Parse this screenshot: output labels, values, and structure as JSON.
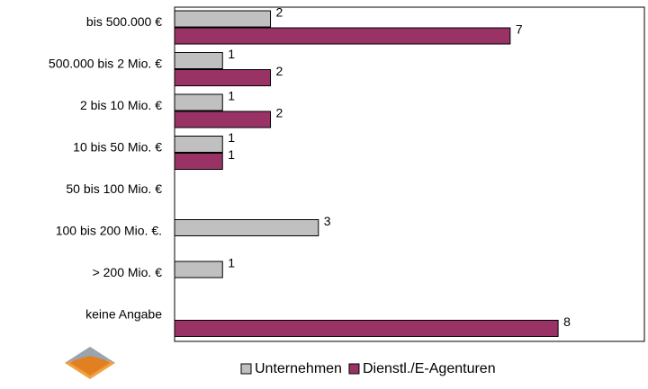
{
  "chart_data": {
    "type": "bar",
    "orientation": "horizontal",
    "categories": [
      "bis 500.000 €",
      "500.000 bis 2 Mio. €",
      "2 bis 10 Mio. €",
      "10 bis 50 Mio. €",
      "50 bis 100 Mio. €",
      "100 bis 200 Mio. €.",
      "> 200 Mio. €",
      "keine Angabe"
    ],
    "series": [
      {
        "name": "Unternehmen",
        "color": "#c0c0c0",
        "values": [
          2,
          1,
          1,
          1,
          null,
          3,
          1,
          null
        ]
      },
      {
        "name": "Dienstl./E-Agenturen",
        "color": "#993366",
        "values": [
          7,
          2,
          2,
          1,
          null,
          null,
          null,
          8
        ]
      }
    ],
    "xlim": [
      0,
      9.8
    ],
    "legend": "bottom"
  }
}
